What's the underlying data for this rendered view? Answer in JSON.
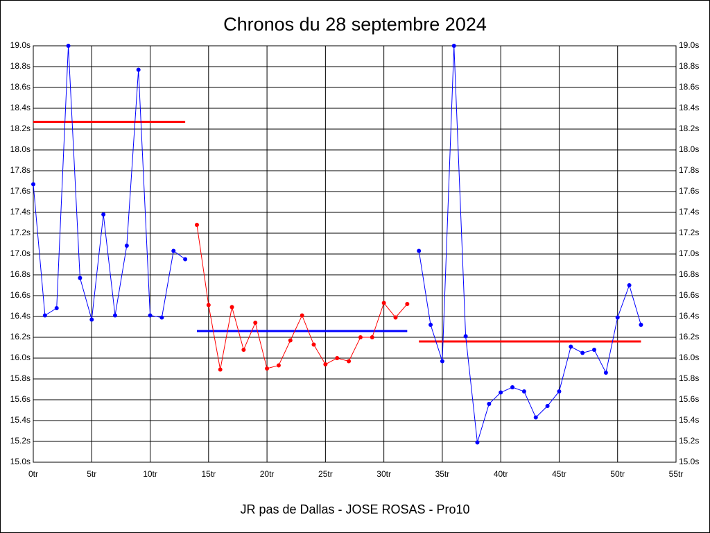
{
  "chart_data": {
    "type": "line",
    "title": "Chronos du 28 septembre 2024",
    "x_label": "JR pas de Dallas - JOSE ROSAS - Pro10",
    "xlim": [
      0,
      55
    ],
    "xticks": [
      {
        "value": 0,
        "label": "0tr"
      },
      {
        "value": 5,
        "label": "5tr"
      },
      {
        "value": 10,
        "label": "10tr"
      },
      {
        "value": 15,
        "label": "15tr"
      },
      {
        "value": 20,
        "label": "20tr"
      },
      {
        "value": 25,
        "label": "25tr"
      },
      {
        "value": 30,
        "label": "30tr"
      },
      {
        "value": 35,
        "label": "35tr"
      },
      {
        "value": 40,
        "label": "40tr"
      },
      {
        "value": 45,
        "label": "45tr"
      },
      {
        "value": 50,
        "label": "50tr"
      },
      {
        "value": 55,
        "label": "55tr"
      }
    ],
    "ylim": [
      15.0,
      19.0
    ],
    "yticks": [
      {
        "value": 15.0,
        "label": "15.0s"
      },
      {
        "value": 15.2,
        "label": "15.2s"
      },
      {
        "value": 15.4,
        "label": "15.4s"
      },
      {
        "value": 15.6,
        "label": "15.6s"
      },
      {
        "value": 15.8,
        "label": "15.8s"
      },
      {
        "value": 16.0,
        "label": "16.0s"
      },
      {
        "value": 16.2,
        "label": "16.2s"
      },
      {
        "value": 16.4,
        "label": "16.4s"
      },
      {
        "value": 16.6,
        "label": "16.6s"
      },
      {
        "value": 16.8,
        "label": "16.8s"
      },
      {
        "value": 17.0,
        "label": "17.0s"
      },
      {
        "value": 17.2,
        "label": "17.2s"
      },
      {
        "value": 17.4,
        "label": "17.4s"
      },
      {
        "value": 17.6,
        "label": "17.6s"
      },
      {
        "value": 17.8,
        "label": "17.8s"
      },
      {
        "value": 18.0,
        "label": "18.0s"
      },
      {
        "value": 18.2,
        "label": "18.2s"
      },
      {
        "value": 18.4,
        "label": "18.4s"
      },
      {
        "value": 18.6,
        "label": "18.6s"
      },
      {
        "value": 18.8,
        "label": "18.8s"
      },
      {
        "value": 19.0,
        "label": "19.0s"
      }
    ],
    "grid": true,
    "series": [
      {
        "color": "#0000ff",
        "x": [
          0,
          1,
          2,
          3,
          4,
          5,
          6,
          7,
          8,
          9,
          10,
          11,
          12,
          13
        ],
        "values": [
          17.67,
          16.41,
          16.48,
          19.0,
          16.77,
          16.37,
          17.38,
          16.41,
          17.08,
          18.77,
          16.41,
          16.39,
          17.03,
          16.95
        ]
      },
      {
        "color": "#ff0000",
        "x": [
          14,
          15,
          16,
          17,
          18,
          19,
          20,
          21,
          22,
          23,
          24,
          25,
          26,
          27,
          28,
          29,
          30,
          31,
          32
        ],
        "values": [
          17.28,
          16.51,
          15.89,
          16.49,
          16.08,
          16.34,
          15.9,
          15.93,
          16.17,
          16.41,
          16.13,
          15.94,
          16.0,
          15.97,
          16.2,
          16.2,
          16.53,
          16.39,
          16.52
        ]
      },
      {
        "color": "#0000ff",
        "x": [
          33,
          34,
          35,
          36,
          37,
          38,
          39,
          40,
          41,
          42,
          43,
          44,
          45,
          46,
          47,
          48,
          49,
          50,
          51,
          52
        ],
        "values": [
          17.03,
          16.32,
          15.97,
          19.0,
          16.21,
          15.19,
          15.56,
          15.67,
          15.72,
          15.68,
          15.43,
          15.54,
          15.68,
          16.11,
          16.05,
          16.08,
          15.86,
          16.39,
          16.7,
          16.32
        ]
      }
    ],
    "reference_lines": [
      {
        "value": 18.27,
        "from": 0,
        "to": 13,
        "color": "#ff0000"
      },
      {
        "value": 16.26,
        "from": 14,
        "to": 32,
        "color": "#0000ff"
      },
      {
        "value": 16.16,
        "from": 33,
        "to": 52,
        "color": "#ff0000"
      }
    ]
  }
}
